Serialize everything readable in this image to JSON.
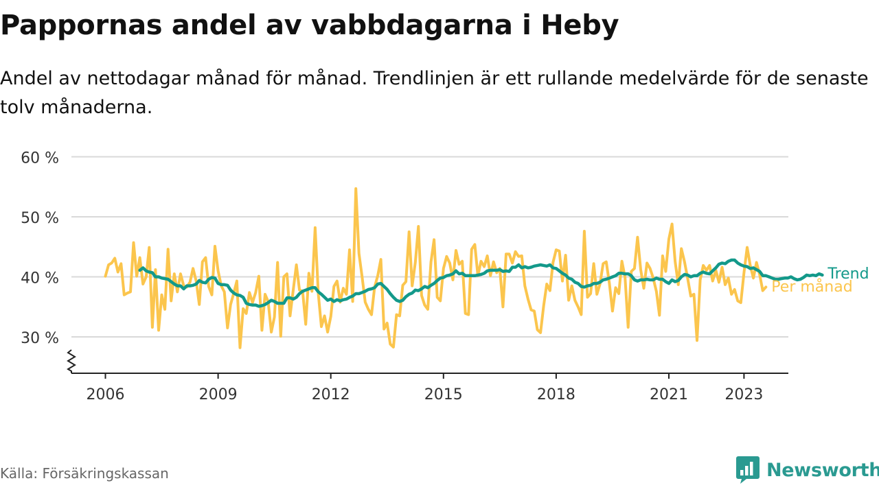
{
  "title": "Pappornas andel av vabbdagarna i Heby",
  "subtitle": "Andel av nettodagar månad för månad. Trendlinjen är ett rullande medelvärde för de senaste tolv månaderna.",
  "source": "Källa: Försäkringskassan",
  "brand": "Newsworthy",
  "colors": {
    "trend": "#13998a",
    "monthly": "#fbc54d",
    "grid": "#d9d9d9",
    "brand": "#2a9a91"
  },
  "chart_data": {
    "type": "line",
    "ylim": [
      24,
      60
    ],
    "yticks": [
      30,
      40,
      50,
      60
    ],
    "ytick_labels": [
      "30 %",
      "40 %",
      "50 %",
      "60 %"
    ],
    "xlim": [
      2005.4,
      2024.1
    ],
    "xticks": [
      2006,
      2009,
      2012,
      2015,
      2018,
      2021,
      2023
    ],
    "xtick_labels": [
      "2006",
      "2009",
      "2012",
      "2015",
      "2018",
      "2021",
      "2023"
    ],
    "y_axis_break": true,
    "series": [
      {
        "name": "Per månad",
        "x_start": 2006.0,
        "x_step": 0.0833333,
        "values": [
          40.1,
          42,
          42.3,
          43.1,
          40.8,
          42.2,
          37,
          37.3,
          37.5,
          45.7,
          40.1,
          43.2,
          38.8,
          40,
          44.9,
          31.6,
          41.2,
          31.1,
          37,
          34.6,
          44.6,
          36,
          40.5,
          37.5,
          40.5,
          38.5,
          38.3,
          39.1,
          41.4,
          39.3,
          35.4,
          42.5,
          43.2,
          38.4,
          37,
          45.1,
          41,
          38.5,
          37.5,
          31.5,
          35.4,
          37.3,
          39.3,
          28.2,
          34.7,
          33.9,
          37.4,
          35.7,
          37.4,
          40.1,
          31.1,
          37.1,
          35.9,
          30.8,
          33.3,
          42.4,
          30.1,
          40,
          40.5,
          33.5,
          37.8,
          42,
          37.8,
          37.6,
          32.1,
          40.6,
          37.6,
          48.2,
          37.2,
          31.7,
          33.5,
          30.8,
          33.4,
          38.4,
          39.3,
          35.8,
          38.1,
          37.1,
          44.5,
          35.9,
          54.7,
          43.9,
          40,
          35.8,
          34.6,
          33.7,
          38.3,
          40.2,
          42.9,
          31.3,
          32.3,
          28.8,
          28.3,
          33.7,
          33.5,
          38.6,
          39.2,
          47.5,
          38.5,
          42.4,
          48.4,
          36.9,
          35.3,
          34.6,
          42.5,
          46.2,
          36.6,
          36,
          41.4,
          43.4,
          42.3,
          39.5,
          44.4,
          42.1,
          42.6,
          33.9,
          33.7,
          44.6,
          45.4,
          40.2,
          42.6,
          41.7,
          43.5,
          40.2,
          42.5,
          40.7,
          41.4,
          35,
          43.8,
          43.8,
          42.3,
          44.2,
          43.4,
          43.5,
          38.5,
          36.3,
          34.5,
          34.3,
          31.2,
          30.7,
          35.2,
          38.8,
          37.7,
          42.4,
          44.5,
          44.3,
          39.3,
          43.6,
          36.1,
          38.5,
          36.1,
          35,
          33.7,
          47.6,
          36.6,
          37.2,
          42.2,
          37.1,
          38.8,
          42.2,
          42.5,
          38.9,
          34.3,
          38.2,
          37.2,
          42.6,
          39.9,
          31.6,
          40.9,
          41.4,
          46.6,
          41.2,
          38.1,
          42.3,
          41.4,
          39.8,
          37.6,
          33.6,
          43.5,
          40.9,
          46.3,
          48.8,
          42.6,
          38.7,
          44.7,
          42.5,
          39.8,
          36.8,
          37.1,
          29.4,
          39.5,
          41.9,
          41.1,
          41.9,
          39.3,
          41.1,
          39.1,
          41.6,
          38.7,
          39.8,
          37.1,
          37.9,
          36,
          35.7,
          40.7,
          44.9,
          41.9,
          39.8,
          42.4,
          40.4,
          37.7,
          38.3
        ]
      },
      {
        "name": "Trend",
        "x_start": 2006.9167,
        "x_step": 0.0833333,
        "values": [
          41.1,
          41.5,
          41,
          40.8,
          40.7,
          40,
          40,
          39.8,
          39.7,
          39.6,
          39.2,
          38.8,
          38.5,
          38.5,
          38,
          38.5,
          38.5,
          38.6,
          38.8,
          39.4,
          39.1,
          39,
          39.6,
          39.9,
          39.8,
          38.9,
          38.7,
          38.7,
          38.6,
          37.8,
          37.3,
          37,
          36.9,
          36.6,
          35.6,
          35.4,
          35.3,
          35.3,
          35.1,
          35.2,
          35.4,
          35.7,
          36.1,
          35.9,
          35.6,
          35.6,
          35.6,
          36.5,
          36.5,
          36.3,
          36.6,
          37.2,
          37.6,
          37.8,
          38,
          38.2,
          38.2,
          37.5,
          37.1,
          36.6,
          36.1,
          36.3,
          35.9,
          36.2,
          36,
          36.2,
          36.3,
          36.6,
          36.8,
          37.2,
          37.2,
          37.4,
          37.6,
          37.9,
          38,
          38.2,
          38.8,
          38.9,
          38.4,
          37.9,
          37.2,
          36.6,
          36.1,
          35.9,
          36.1,
          36.7,
          37.1,
          37.3,
          37.8,
          37.7,
          38,
          38.4,
          38.2,
          38.6,
          38.9,
          39.4,
          39.8,
          39.9,
          40.2,
          40.3,
          40.5,
          41,
          40.5,
          40.6,
          40.2,
          40.2,
          40.2,
          40.2,
          40.3,
          40.4,
          40.6,
          41,
          41.1,
          41.1,
          41.1,
          41.2,
          40.9,
          41,
          40.9,
          41.6,
          41.6,
          42,
          41.5,
          41.7,
          41.5,
          41.6,
          41.8,
          41.9,
          42,
          41.9,
          41.8,
          42,
          41.5,
          41.4,
          41,
          40.6,
          40.3,
          39.8,
          39.6,
          39.1,
          38.9,
          38.4,
          38.3,
          38.5,
          38.6,
          38.9,
          38.9,
          39.1,
          39.5,
          39.6,
          39.8,
          40,
          40.2,
          40.6,
          40.6,
          40.5,
          40.5,
          40.2,
          39.5,
          39.3,
          39.5,
          39.5,
          39.6,
          39.5,
          39.5,
          39.8,
          39.6,
          39.6,
          39.2,
          38.9,
          39.5,
          39.2,
          39.4,
          40,
          40.4,
          40.3,
          40,
          40.2,
          40.2,
          40.6,
          40.8,
          40.6,
          40.5,
          41,
          41.5,
          42.1,
          42.3,
          42.2,
          42.6,
          42.8,
          42.8,
          42.3,
          42,
          41.8,
          41.7,
          41.4,
          41.5,
          41.2,
          40.9,
          40.2,
          40.2,
          40,
          39.8,
          39.6,
          39.6,
          39.7,
          39.8,
          39.8,
          40,
          39.7,
          39.5,
          39.6,
          39.9,
          40.3,
          40.2,
          40.3,
          40.2,
          40.5,
          40.3
        ]
      }
    ]
  }
}
